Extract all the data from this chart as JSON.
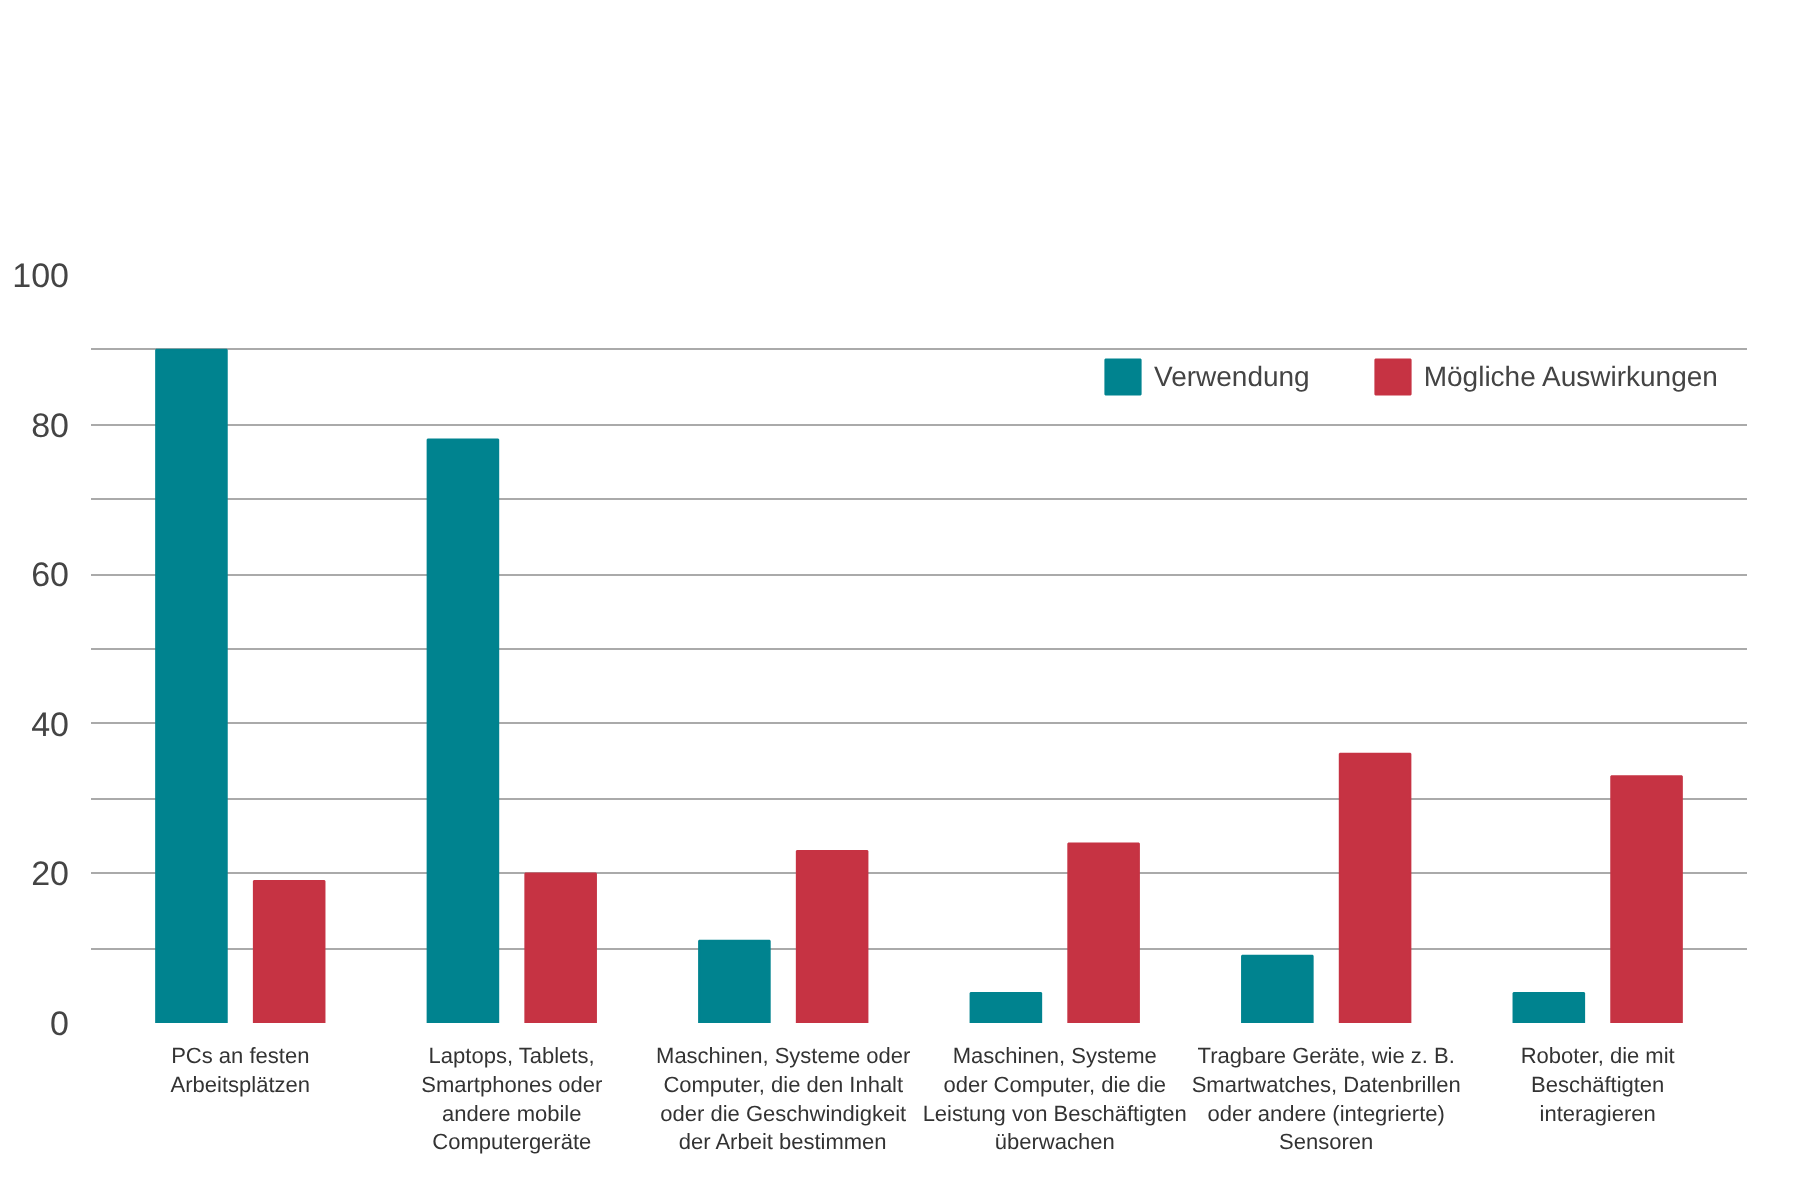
{
  "chart_data": {
    "type": "bar",
    "categories": [
      "PCs an festen\nArbeitsplätzen",
      "Laptops, Tablets,\nSmartphones oder\nandere mobile\nComputergeräte",
      "Maschinen, Systeme oder\nComputer, die den Inhalt\noder die Geschwindigkeit\nder Arbeit bestimmen",
      "Maschinen, Systeme\noder Computer, die die\nLeistung von Beschäftigten\nüberwachen",
      "Tragbare Geräte, wie z. B.\nSmartwatches, Datenbrillen\noder andere (integrierte)\nSensoren",
      "Roboter, die mit\nBeschäftigten\ninteragieren"
    ],
    "series": [
      {
        "name": "Verwendung",
        "color": "#00838f",
        "values": [
          90,
          78,
          11,
          4,
          9,
          4
        ]
      },
      {
        "name": "Mögliche Auswirkungen",
        "color": "#c63343",
        "values": [
          19,
          20,
          23,
          24,
          36,
          33
        ]
      }
    ],
    "ylim": [
      0,
      100
    ],
    "yticks": [
      0,
      {
        "value": 10,
        "label": null
      },
      20,
      {
        "value": 30,
        "label": null
      },
      40,
      {
        "value": 50,
        "label": null
      },
      60,
      {
        "value": 70,
        "label": null
      },
      80,
      {
        "value": 90,
        "label": null
      },
      100
    ],
    "grid": "y",
    "legend": "top right"
  }
}
